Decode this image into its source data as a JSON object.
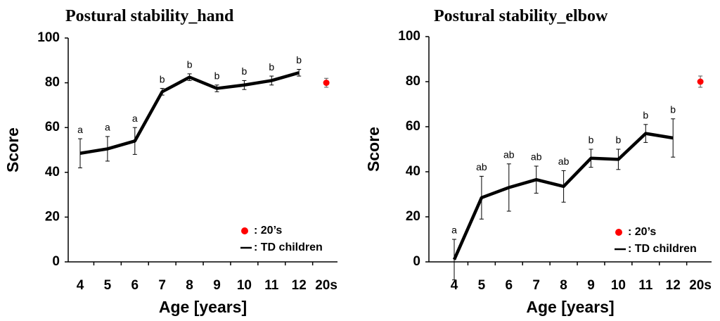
{
  "chart_data": [
    {
      "type": "line",
      "title": "Postural stability_hand",
      "xlabel": "Age [years]",
      "ylabel": "Score",
      "categories": [
        "4",
        "5",
        "6",
        "7",
        "8",
        "9",
        "10",
        "11",
        "12",
        "20s"
      ],
      "ylim": [
        0,
        100
      ],
      "yticks": [
        0,
        20,
        40,
        60,
        80,
        100
      ],
      "annotations": [
        "a",
        "a",
        "a",
        "b",
        "b",
        "b",
        "b",
        "b",
        "b",
        null
      ],
      "series": [
        {
          "name": ": 20’s",
          "color": "#ff0000",
          "style": "point",
          "values": [
            null,
            null,
            null,
            null,
            null,
            null,
            null,
            null,
            null,
            80
          ],
          "errors": [
            null,
            null,
            null,
            null,
            null,
            null,
            null,
            null,
            null,
            2
          ]
        },
        {
          "name": ": TD children",
          "color": "#000000",
          "style": "line",
          "values": [
            48.5,
            50.5,
            54,
            76,
            82.5,
            77.5,
            79,
            81,
            84.5,
            null
          ],
          "errors": [
            6.5,
            5.5,
            6,
            1.5,
            1.5,
            1.5,
            2,
            2,
            1.5,
            null
          ]
        }
      ]
    },
    {
      "type": "line",
      "title": "Postural stability_elbow",
      "xlabel": "Age [years]",
      "ylabel": "Score",
      "categories": [
        "4",
        "5",
        "6",
        "7",
        "8",
        "9",
        "10",
        "11",
        "12",
        "20s"
      ],
      "ylim": [
        0,
        100
      ],
      "yticks": [
        0,
        20,
        40,
        60,
        80,
        100
      ],
      "annotations": [
        "a",
        "ab",
        "ab",
        "ab",
        "ab",
        "b",
        "b",
        "b",
        "b",
        null
      ],
      "series": [
        {
          "name": ": 20’s",
          "color": "#ff0000",
          "style": "point",
          "values": [
            null,
            null,
            null,
            null,
            null,
            null,
            null,
            null,
            null,
            80
          ],
          "errors": [
            null,
            null,
            null,
            null,
            null,
            null,
            null,
            null,
            null,
            2.5
          ]
        },
        {
          "name": ": TD children",
          "color": "#000000",
          "style": "line",
          "values": [
            1,
            28.5,
            33,
            36.5,
            33.5,
            46,
            45.5,
            57,
            55,
            null
          ],
          "errors": [
            9,
            9.5,
            10.5,
            6,
            7,
            4,
            4.5,
            4,
            8.5,
            null
          ]
        }
      ]
    }
  ]
}
